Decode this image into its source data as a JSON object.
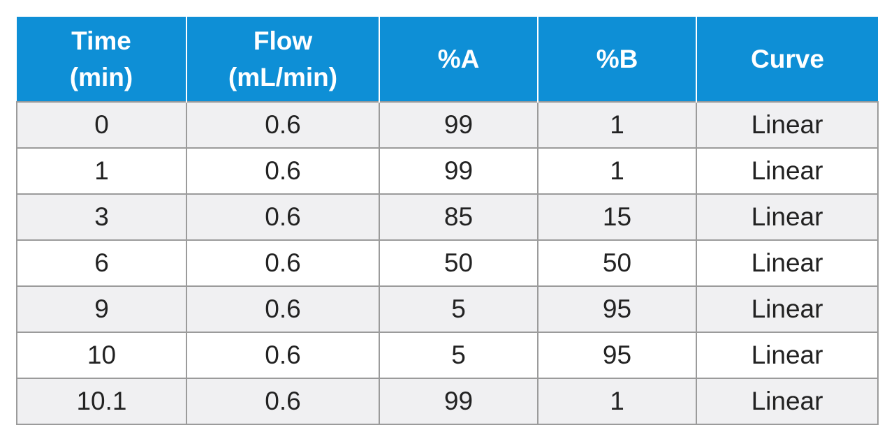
{
  "table": {
    "headers": [
      {
        "line1": "Time",
        "line2": "(min)"
      },
      {
        "line1": "Flow",
        "line2": "(mL/min)"
      },
      {
        "line1": "%A",
        "line2": ""
      },
      {
        "line1": "%B",
        "line2": ""
      },
      {
        "line1": "Curve",
        "line2": ""
      }
    ],
    "rows": [
      [
        "0",
        "0.6",
        "99",
        "1",
        "Linear"
      ],
      [
        "1",
        "0.6",
        "99",
        "1",
        "Linear"
      ],
      [
        "3",
        "0.6",
        "85",
        "15",
        "Linear"
      ],
      [
        "6",
        "0.6",
        "50",
        "50",
        "Linear"
      ],
      [
        "9",
        "0.6",
        "5",
        "95",
        "Linear"
      ],
      [
        "10",
        "0.6",
        "5",
        "95",
        "Linear"
      ],
      [
        "10.1",
        "0.6",
        "99",
        "1",
        "Linear"
      ]
    ]
  },
  "colors": {
    "header_background": "#0e8fd6",
    "header_text": "#ffffff",
    "row_alt_background": "#f0f0f2",
    "grid_line": "#9b9b9b"
  }
}
